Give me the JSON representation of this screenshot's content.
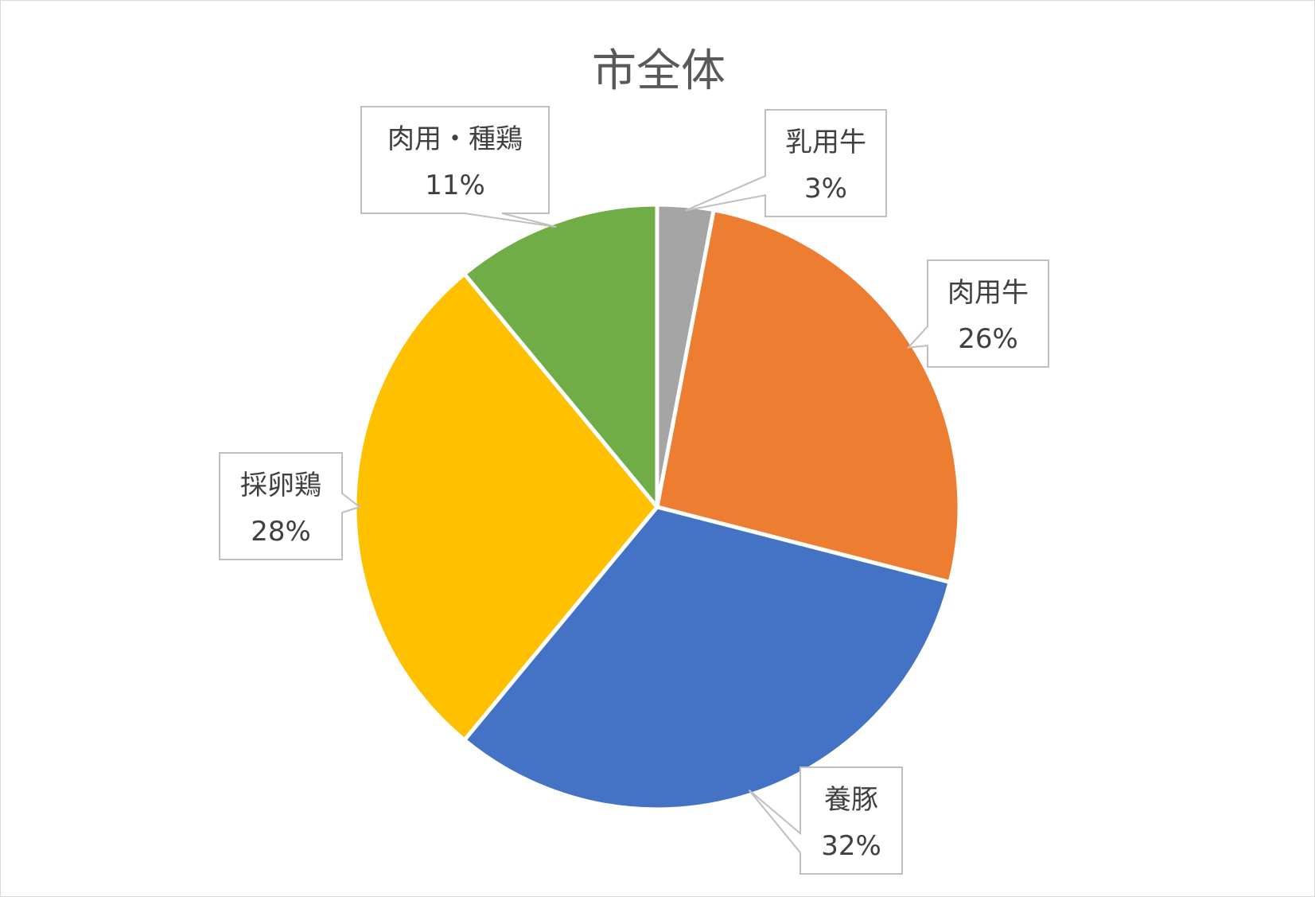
{
  "chart_data": {
    "type": "pie",
    "title": "市全体",
    "start_angle_deg": 0,
    "direction": "clockwise",
    "slices": [
      {
        "label": "乳用牛",
        "value": 3,
        "display": "3%",
        "color": "#a5a5a5"
      },
      {
        "label": "肉用牛",
        "value": 26,
        "display": "26%",
        "color": "#ed7d31"
      },
      {
        "label": "養豚",
        "value": 32,
        "display": "32%",
        "color": "#4472c4"
      },
      {
        "label": "採卵鶏",
        "value": 28,
        "display": "28%",
        "color": "#ffc000"
      },
      {
        "label": "肉用・種鶏",
        "value": 11,
        "display": "11%",
        "color": "#70ad47"
      }
    ],
    "legend": "none",
    "data_labels": "callouts"
  }
}
